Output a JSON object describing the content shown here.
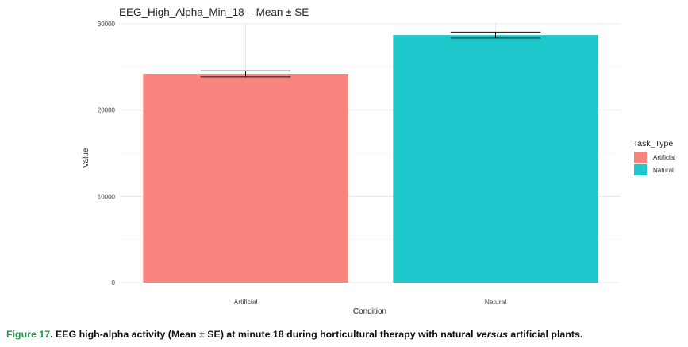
{
  "chart_data": {
    "type": "bar",
    "title": "EEG_High_Alpha_Min_18 – Mean ± SE",
    "xlabel": "Condition",
    "ylabel": "Value",
    "categories": [
      "Artificial",
      "Natural"
    ],
    "values": [
      24200,
      28700
    ],
    "errors": [
      350,
      350
    ],
    "ylim": [
      0,
      30000
    ],
    "yticks": [
      0,
      10000,
      20000,
      30000
    ],
    "ytick_labels": [
      "0",
      "10000",
      "20000",
      "30000"
    ],
    "grid": true,
    "legend": {
      "title": "Task_Type",
      "position": "right",
      "entries": [
        "Artificial",
        "Natural"
      ]
    },
    "colors": [
      "#f8867e",
      "#1dc7cb"
    ]
  },
  "caption": {
    "label": "Figure 17",
    "text_before": ". EEG high-alpha activity (Mean ± SE) at minute 18 during horticultural therapy with natural ",
    "emphasis": "versus",
    "text_after": " artificial plants."
  }
}
